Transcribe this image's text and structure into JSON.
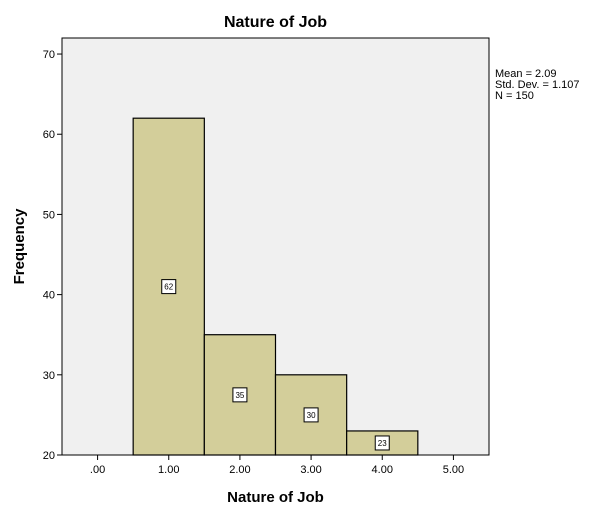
{
  "chart_data": {
    "type": "bar",
    "title": "Nature of Job",
    "xlabel": "Nature of Job",
    "ylabel": "Frequency",
    "x_ticks": [
      ".00",
      "1.00",
      "2.00",
      "3.00",
      "4.00",
      "5.00"
    ],
    "x_tick_values": [
      0,
      1,
      2,
      3,
      4,
      5
    ],
    "xlim": [
      -0.5,
      5.5
    ],
    "ylim": [
      20,
      72
    ],
    "y_ticks": [
      20,
      30,
      40,
      50,
      60,
      70
    ],
    "bins": [
      {
        "center": 1,
        "width": 1,
        "value": 62,
        "label": "62"
      },
      {
        "center": 2,
        "width": 1,
        "value": 35,
        "label": "35"
      },
      {
        "center": 3,
        "width": 1,
        "value": 30,
        "label": "30"
      },
      {
        "center": 4,
        "width": 1,
        "value": 23,
        "label": "23"
      }
    ],
    "stats": [
      "Mean = 2.09",
      "Std. Dev. = 1.107",
      "N = 150"
    ],
    "colors": {
      "bar_fill": "#d3ce9a",
      "bar_stroke": "#000000",
      "plot_bg": "#f0f0f0",
      "label_box_fill": "#ffffff"
    },
    "grid": false
  }
}
